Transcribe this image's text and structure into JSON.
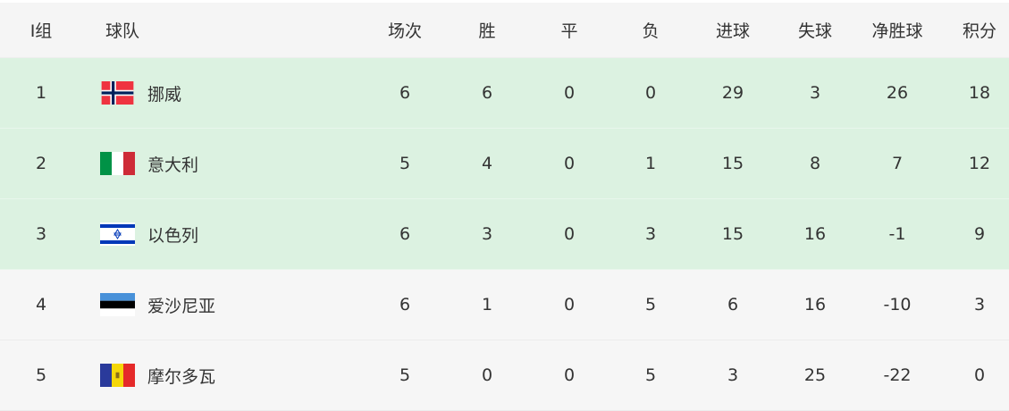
{
  "header": {
    "group": "I组",
    "team": "球队",
    "played": "场次",
    "win": "胜",
    "draw": "平",
    "loss": "负",
    "gf": "进球",
    "ga": "失球",
    "gd": "净胜球",
    "pts": "积分"
  },
  "colors": {
    "qualified": "#dcf2e1",
    "other": "#f6f6f6",
    "header": "#f5f5f5"
  },
  "rows": [
    {
      "rank": "1",
      "team": "挪威",
      "flag": "norway-flag",
      "played": "6",
      "win": "6",
      "draw": "0",
      "loss": "0",
      "gf": "29",
      "ga": "3",
      "gd": "26",
      "pts": "18"
    },
    {
      "rank": "2",
      "team": "意大利",
      "flag": "italy-flag",
      "played": "5",
      "win": "4",
      "draw": "0",
      "loss": "1",
      "gf": "15",
      "ga": "8",
      "gd": "7",
      "pts": "12"
    },
    {
      "rank": "3",
      "team": "以色列",
      "flag": "israel-flag",
      "played": "6",
      "win": "3",
      "draw": "0",
      "loss": "3",
      "gf": "15",
      "ga": "16",
      "gd": "-1",
      "pts": "9"
    },
    {
      "rank": "4",
      "team": "爱沙尼亚",
      "flag": "estonia-flag",
      "played": "6",
      "win": "1",
      "draw": "0",
      "loss": "5",
      "gf": "6",
      "ga": "16",
      "gd": "-10",
      "pts": "3"
    },
    {
      "rank": "5",
      "team": "摩尔多瓦",
      "flag": "moldova-flag",
      "played": "5",
      "win": "0",
      "draw": "0",
      "loss": "5",
      "gf": "3",
      "ga": "25",
      "gd": "-22",
      "pts": "0"
    }
  ]
}
